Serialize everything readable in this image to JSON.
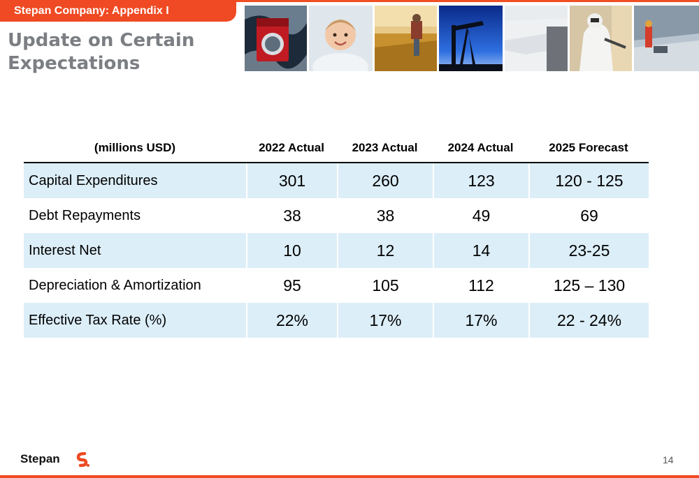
{
  "header": {
    "badge": "Stepan Company:  Appendix I",
    "title": "Update on Certain Expectations"
  },
  "photos": [
    {
      "icon": "washing-machine-photo"
    },
    {
      "icon": "baby-photo"
    },
    {
      "icon": "wheat-field-farmer-photo"
    },
    {
      "icon": "oil-pump-photo"
    },
    {
      "icon": "roof-insulation-photo"
    },
    {
      "icon": "spray-foam-worker-photo"
    },
    {
      "icon": "floor-construction-photo"
    }
  ],
  "table": {
    "headers": [
      "(millions USD)",
      "2022 Actual",
      "2023 Actual",
      "2024 Actual",
      "2025 Forecast"
    ],
    "rows": [
      {
        "label": "Capital Expenditures",
        "values": [
          "301",
          "260",
          "123",
          "120 - 125"
        ]
      },
      {
        "label": "Debt Repayments",
        "values": [
          "38",
          "38",
          "49",
          "69"
        ]
      },
      {
        "label": "Interest Net",
        "values": [
          "10",
          "12",
          "14",
          "23-25"
        ]
      },
      {
        "label": "Depreciation & Amortization",
        "values": [
          "95",
          "105",
          "112",
          "125 – 130"
        ]
      },
      {
        "label": "Effective Tax Rate (%)",
        "values": [
          "22%",
          "17%",
          "17%",
          "22 - 24%"
        ]
      }
    ]
  },
  "footer": {
    "logo_text": "Stepan",
    "page_number": "14"
  },
  "colors": {
    "accent": "#ef4a23",
    "row_shade": "#dceef8",
    "title_gray": "#7b7e82"
  }
}
